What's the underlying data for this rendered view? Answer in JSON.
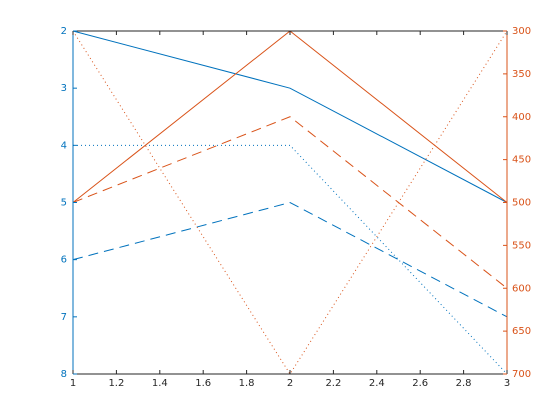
{
  "chart_data": {
    "type": "line",
    "x": [
      1,
      2,
      3
    ],
    "xlim": [
      1,
      3
    ],
    "xticks": [
      1,
      1.2,
      1.4,
      1.6,
      1.8,
      2,
      2.2,
      2.4,
      2.6,
      2.8,
      3
    ],
    "ylim": [
      2,
      8
    ],
    "yticks": [
      2,
      3,
      4,
      5,
      6,
      7,
      8
    ],
    "y_reverse": true,
    "y_color": "#0072bd",
    "y2lim": [
      300,
      700
    ],
    "y2ticks": [
      300,
      350,
      400,
      450,
      500,
      550,
      600,
      650,
      700
    ],
    "y2_reverse": true,
    "y2_color": "#d95319",
    "grid": false,
    "series": [
      {
        "color": "#0072bd",
        "linestyle": "solid",
        "values": [
          2,
          3,
          5
        ]
      },
      {
        "color": "#0072bd",
        "linestyle": "dotted",
        "values": [
          4,
          4,
          8
        ]
      },
      {
        "color": "#0072bd",
        "linestyle": "dashed",
        "values": [
          6,
          5,
          7
        ]
      },
      {
        "color": "#d95319",
        "linestyle": "solid",
        "axis": "y2",
        "values": [
          500,
          300,
          500
        ]
      },
      {
        "color": "#d95319",
        "linestyle": "dashed",
        "axis": "y2",
        "values": [
          500,
          400,
          600
        ]
      },
      {
        "color": "#d95319",
        "linestyle": "dotted",
        "axis": "y2",
        "values": [
          300,
          700,
          300
        ]
      }
    ]
  }
}
